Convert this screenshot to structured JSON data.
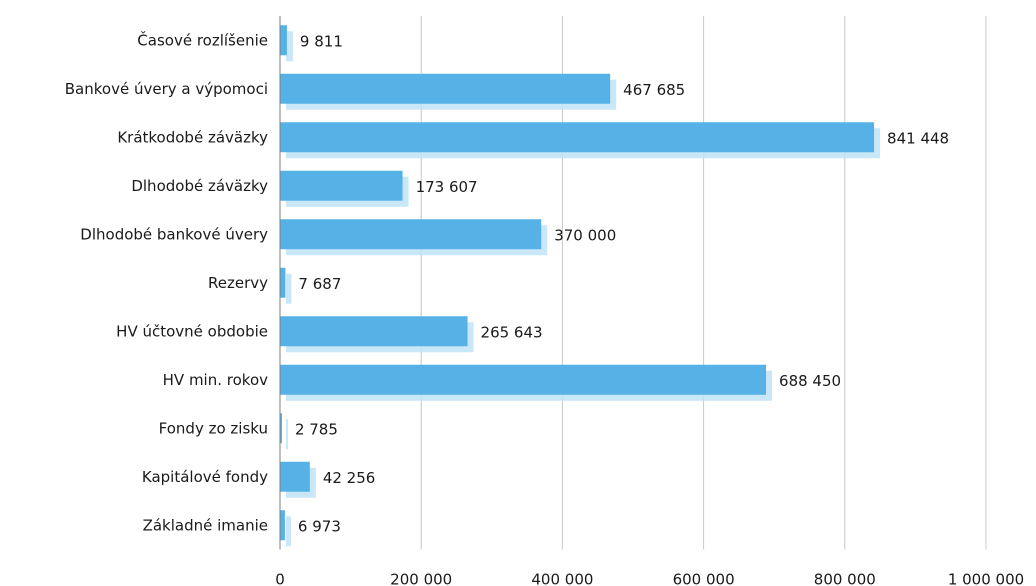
{
  "chart_data": {
    "type": "bar",
    "orientation": "horizontal",
    "title": "",
    "xlabel": "",
    "ylabel": "",
    "categories": [
      "Časové rozlíšenie",
      "Bankové úvery a výpomoci",
      "Krátkodobé záväzky",
      "Dlhodobé záväzky",
      "Dlhodobé bankové úvery",
      "Rezervy",
      "HV účtovné obdobie",
      "HV min. rokov",
      "Fondy zo zisku",
      "Kapitálové fondy",
      "Základné imanie"
    ],
    "values": [
      9811,
      467685,
      841448,
      173607,
      370000,
      7687,
      265643,
      688450,
      2785,
      42256,
      6973
    ],
    "value_labels": [
      "9 811",
      "467 685",
      "841 448",
      "173 607",
      "370 000",
      "7 687",
      "265 643",
      "688 450",
      "2 785",
      "42 256",
      "6 973"
    ],
    "xlim": [
      0,
      1000000
    ],
    "x_ticks": [
      0,
      200000,
      400000,
      600000,
      800000,
      1000000
    ],
    "x_tick_labels": [
      "0",
      "200 000",
      "400 000",
      "600 000",
      "800 000",
      "1 000 000"
    ],
    "grid": "vertical",
    "legend": "none",
    "colors": {
      "bar": "#56b2e6",
      "bar_shadow": "#bfe3f6"
    }
  }
}
